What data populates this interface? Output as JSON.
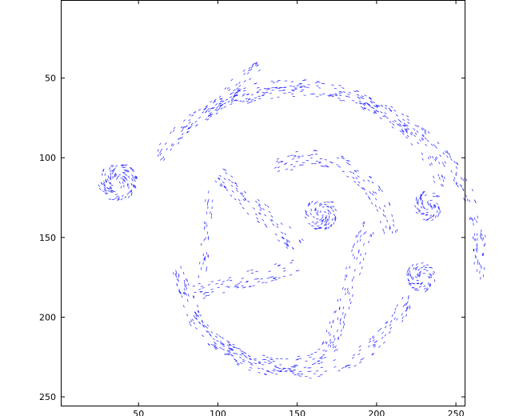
{
  "chart_data": {
    "type": "scatter",
    "subtype": "vector-field-quiver",
    "title": "",
    "xlabel": "",
    "ylabel": "",
    "xlim": [
      1,
      256
    ],
    "ylim": [
      1,
      256
    ],
    "y_axis_reversed": true,
    "grid": false,
    "legend": "none",
    "xticks": [
      50,
      100,
      150,
      200,
      250
    ],
    "yticks": [
      50,
      100,
      150,
      200,
      250
    ],
    "series": [
      {
        "color": "#1f1fff",
        "description_regions": [
          {
            "kind": "ring-arc",
            "cx": 148,
            "cy": 150,
            "rx": 100,
            "ry": 95,
            "a0": -150,
            "a1": -20,
            "thickness": 9
          },
          {
            "kind": "ring-arc",
            "cx": 150,
            "cy": 158,
            "rx": 115,
            "ry": 100,
            "a0": -130,
            "a1": 10,
            "thickness": 8
          },
          {
            "kind": "ring-arc",
            "cx": 150,
            "cy": 160,
            "rx": 75,
            "ry": 75,
            "a0": 20,
            "a1": 175,
            "thickness": 9
          },
          {
            "kind": "ring-arc",
            "cx": 140,
            "cy": 150,
            "rx": 72,
            "ry": 80,
            "a0": 60,
            "a1": 140,
            "thickness": 10
          },
          {
            "kind": "ring-arc",
            "cx": 160,
            "cy": 160,
            "rx": 50,
            "ry": 60,
            "a0": -120,
            "a1": -10,
            "thickness": 10
          },
          {
            "kind": "band",
            "x0": 100,
            "y0": 110,
            "x1": 150,
            "y1": 155,
            "thickness": 12
          },
          {
            "kind": "band",
            "x0": 95,
            "y0": 120,
            "x1": 90,
            "y1": 175,
            "thickness": 6
          },
          {
            "kind": "band",
            "x0": 85,
            "y0": 185,
            "x1": 150,
            "y1": 168,
            "thickness": 10
          },
          {
            "kind": "band",
            "x0": 195,
            "y0": 140,
            "x1": 170,
            "y1": 220,
            "thickness": 10
          },
          {
            "kind": "band",
            "x0": 90,
            "y0": 75,
            "x1": 125,
            "y1": 42,
            "thickness": 9
          },
          {
            "kind": "blob",
            "cx": 37,
            "cy": 115,
            "r": 12
          },
          {
            "kind": "blob",
            "cx": 233,
            "cy": 130,
            "r": 9
          },
          {
            "kind": "blob",
            "cx": 228,
            "cy": 175,
            "r": 9
          },
          {
            "kind": "blob",
            "cx": 165,
            "cy": 135,
            "r": 10
          }
        ]
      }
    ]
  }
}
